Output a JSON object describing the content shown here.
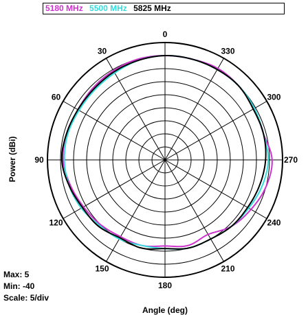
{
  "chart_data": {
    "type": "line",
    "projection": "polar",
    "xlabel": "Angle (deg)",
    "ylabel": "Power (dBi)",
    "angle_direction": "counterclockwise, 0 at top",
    "angle_ticks": [
      "0",
      "30",
      "60",
      "90",
      "120",
      "150",
      "180",
      "210",
      "240",
      "270",
      "300",
      "330"
    ],
    "rlim": [
      -40,
      5
    ],
    "r_step": 5,
    "grid": true,
    "legend_position": "top",
    "stats": {
      "max": "Max: 5",
      "min": "Min: -40",
      "scale": "Scale: 5/div"
    },
    "theta": [
      0,
      15,
      30,
      45,
      60,
      75,
      90,
      105,
      120,
      135,
      150,
      165,
      180,
      195,
      210,
      225,
      240,
      255,
      270,
      285,
      300,
      315,
      330,
      345
    ],
    "series": [
      {
        "name": "5180 MHz",
        "color": "#cc33cc",
        "values": [
          0,
          0,
          -0.5,
          -1,
          -1.5,
          -1,
          -1,
          -2.5,
          -4,
          -5,
          -6,
          -6,
          -7,
          -6,
          -7,
          -4,
          -2,
          0,
          1,
          -1,
          -0.5,
          0,
          0.5,
          0
        ]
      },
      {
        "name": "5500 MHz",
        "color": "#33dddd",
        "values": [
          0,
          -0.5,
          -1.5,
          -2,
          -2,
          -1.5,
          -1.5,
          -2,
          -3,
          -4.5,
          -5,
          -6,
          -6,
          -5,
          -5,
          -4,
          -3,
          -1.5,
          -0.5,
          -1,
          -0.5,
          0,
          0,
          0
        ]
      },
      {
        "name": "5825 MHz",
        "color": "#000000",
        "values": [
          0,
          -0.5,
          -1,
          -1.5,
          -1.5,
          -1,
          -0.5,
          -2,
          -3.5,
          -4,
          -5.5,
          -5,
          -6,
          -5,
          -5,
          -4,
          -3.5,
          -2.5,
          -1.5,
          -1,
          -1,
          0,
          0,
          0
        ]
      }
    ]
  }
}
